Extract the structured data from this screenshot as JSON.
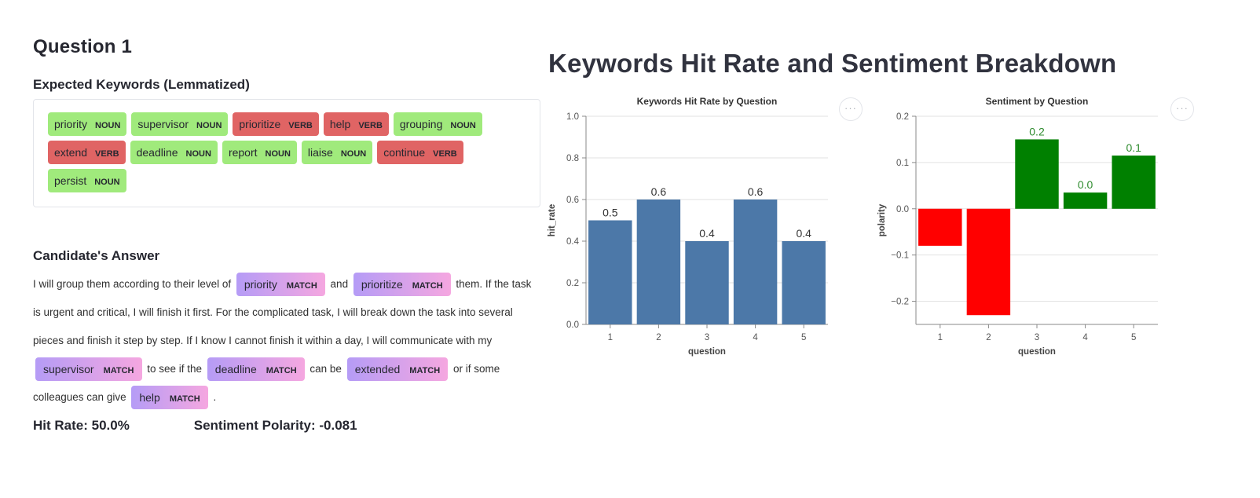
{
  "question_title": "Question 1",
  "expected_heading": "Expected Keywords (Lemmatized)",
  "keywords": [
    {
      "word": "priority",
      "pos": "NOUN",
      "status": "green"
    },
    {
      "word": "supervisor",
      "pos": "NOUN",
      "status": "green"
    },
    {
      "word": "prioritize",
      "pos": "VERB",
      "status": "red"
    },
    {
      "word": "help",
      "pos": "VERB",
      "status": "red"
    },
    {
      "word": "grouping",
      "pos": "NOUN",
      "status": "green"
    },
    {
      "word": "extend",
      "pos": "VERB",
      "status": "red"
    },
    {
      "word": "deadline",
      "pos": "NOUN",
      "status": "green"
    },
    {
      "word": "report",
      "pos": "NOUN",
      "status": "green"
    },
    {
      "word": "liaise",
      "pos": "NOUN",
      "status": "green"
    },
    {
      "word": "continue",
      "pos": "VERB",
      "status": "red"
    },
    {
      "word": "persist",
      "pos": "NOUN",
      "status": "green"
    }
  ],
  "answer_heading": "Candidate's Answer",
  "answer_segments": [
    {
      "t": "text",
      "v": "I will group them according to their level of "
    },
    {
      "t": "match",
      "v": "priority",
      "tag": "MATCH"
    },
    {
      "t": "text",
      "v": " and "
    },
    {
      "t": "match",
      "v": "prioritize",
      "tag": "MATCH"
    },
    {
      "t": "text",
      "v": " them. If the task is urgent and critical, I will finish it first. For the complicated task, I will break down the task into several pieces and finish it step by step. If I know I cannot finish it within a day, I will communicate with my "
    },
    {
      "t": "match",
      "v": "supervisor",
      "tag": "MATCH"
    },
    {
      "t": "text",
      "v": " to see if the "
    },
    {
      "t": "match",
      "v": "deadline",
      "tag": "MATCH"
    },
    {
      "t": "text",
      "v": " can be "
    },
    {
      "t": "match",
      "v": "extended",
      "tag": "MATCH"
    },
    {
      "t": "text",
      "v": " or if some colleagues can give "
    },
    {
      "t": "match",
      "v": "help",
      "tag": "MATCH"
    },
    {
      "t": "text",
      "v": " ."
    }
  ],
  "hit_rate_text": "Hit Rate: 50.0%",
  "sentiment_text": "Sentiment Polarity: -0.081",
  "page_title": "Keywords Hit Rate and Sentiment Breakdown",
  "menu_glyph": "···",
  "colors": {
    "bar_blue": "#4c78a8",
    "positive": "#008000",
    "negative": "#ff0000",
    "label_green": "#2e8b2e"
  },
  "chart_data": [
    {
      "type": "bar",
      "title": "Keywords Hit Rate by Question",
      "categories": [
        "1",
        "2",
        "3",
        "4",
        "5"
      ],
      "values": [
        0.5,
        0.6,
        0.4,
        0.6,
        0.4
      ],
      "data_labels": [
        "0.5",
        "0.6",
        "0.4",
        "0.6",
        "0.4"
      ],
      "xlabel": "question",
      "ylabel": "hit_rate",
      "ylim": [
        0,
        1
      ],
      "yticks": [
        "0.0",
        "0.2",
        "0.4",
        "0.6",
        "0.8",
        "1.0"
      ],
      "grid": true
    },
    {
      "type": "bar",
      "title": "Sentiment by Question",
      "categories": [
        "1",
        "2",
        "3",
        "4",
        "5"
      ],
      "values": [
        -0.08,
        -0.23,
        0.15,
        0.035,
        0.115
      ],
      "data_labels": [
        "",
        "",
        "0.2",
        "0.0",
        "0.1"
      ],
      "xlabel": "question",
      "ylabel": "polarity",
      "ylim": [
        -0.25,
        0.2
      ],
      "yticks": [
        "−0.2",
        "−0.1",
        "0.0",
        "0.1",
        "0.2"
      ],
      "ytick_values": [
        -0.2,
        -0.1,
        0,
        0.1,
        0.2
      ],
      "grid": true
    }
  ]
}
